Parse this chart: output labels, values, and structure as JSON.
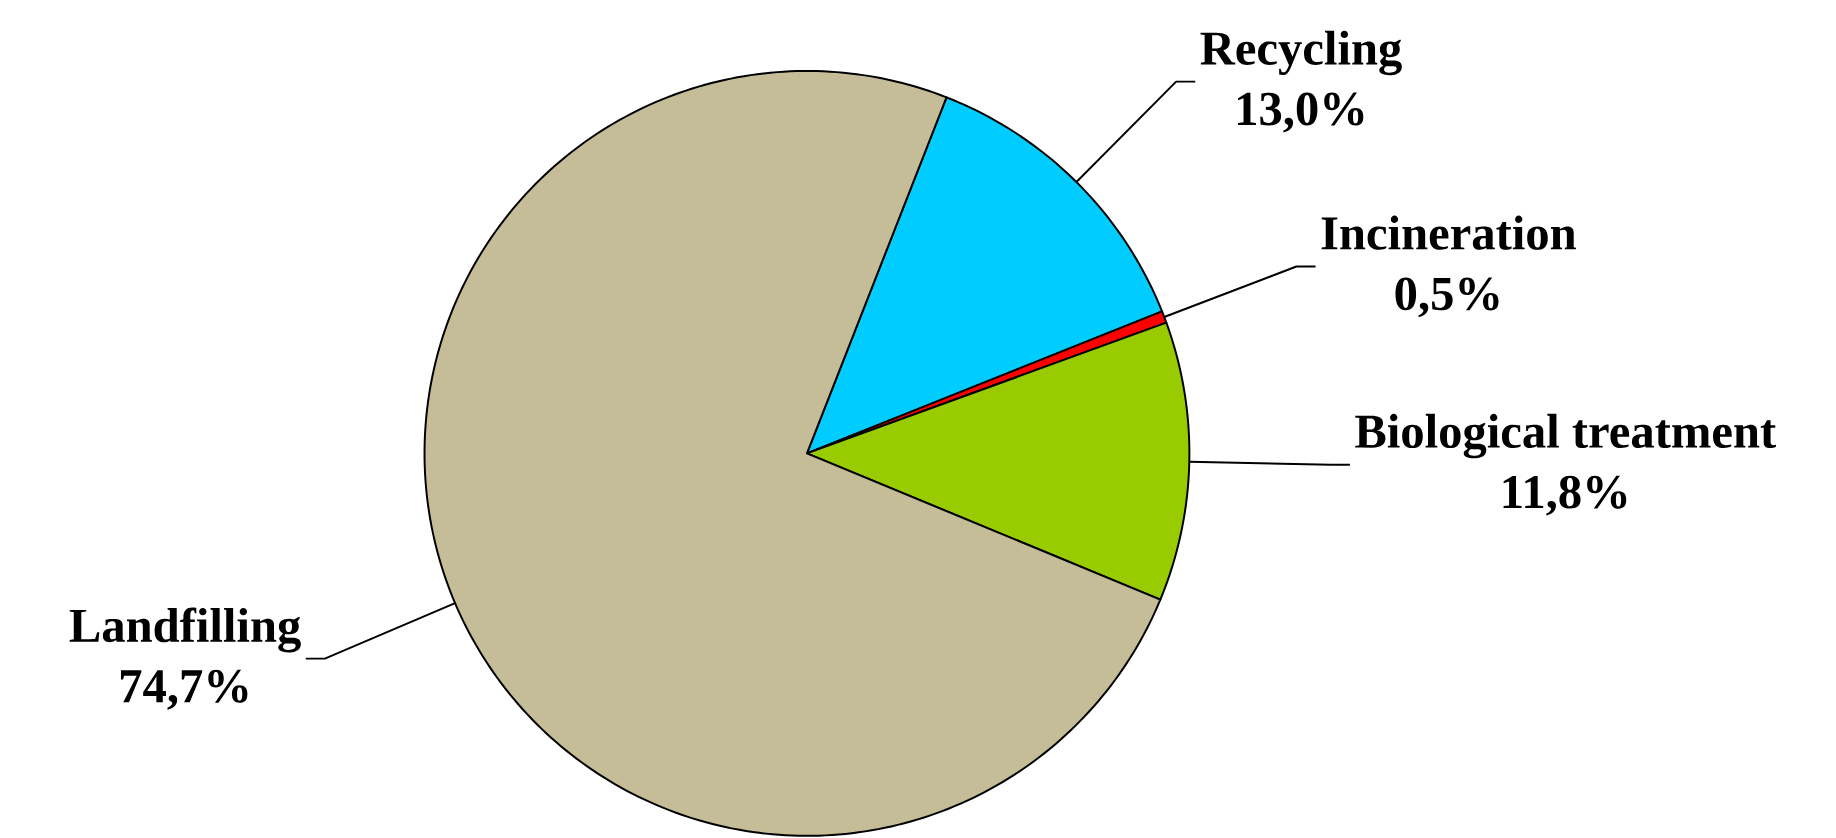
{
  "chart_data": {
    "type": "pie",
    "categories": [
      "Recycling",
      "Incineration",
      "Biological treatment",
      "Landfilling"
    ],
    "values": [
      13.0,
      0.5,
      11.8,
      74.7
    ],
    "value_labels": [
      "13,0%",
      "0,5%",
      "11,8%",
      "74,7%"
    ],
    "colors": [
      "#00ccff",
      "#ff0000",
      "#99cc00",
      "#c4bd97"
    ]
  }
}
